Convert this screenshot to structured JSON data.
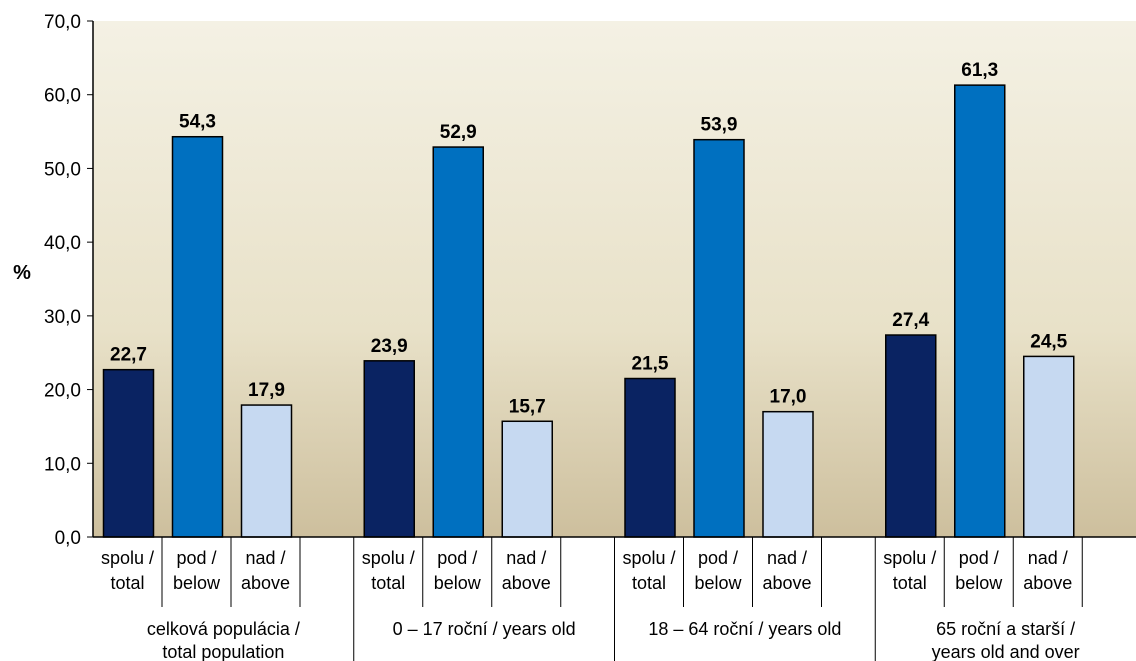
{
  "chart_data": {
    "type": "bar",
    "ylabel": "%",
    "ylim": [
      0,
      70
    ],
    "yticks": [
      "0,0",
      "10,0",
      "20,0",
      "30,0",
      "40,0",
      "50,0",
      "60,0",
      "70,0"
    ],
    "grid": false,
    "legend": "none",
    "groups": [
      {
        "label_lines": [
          "celková populácia /",
          "total population"
        ],
        "bars": [
          {
            "label_lines": [
              "spolu /",
              "total"
            ],
            "value": 22.7,
            "value_label": "22,7"
          },
          {
            "label_lines": [
              "pod /",
              "below"
            ],
            "value": 54.3,
            "value_label": "54,3"
          },
          {
            "label_lines": [
              "nad /",
              "above"
            ],
            "value": 17.9,
            "value_label": "17,9"
          }
        ]
      },
      {
        "label_lines": [
          "0 – 17 roční / years old"
        ],
        "bars": [
          {
            "label_lines": [
              "spolu /",
              "total"
            ],
            "value": 23.9,
            "value_label": "23,9"
          },
          {
            "label_lines": [
              "pod /",
              "below"
            ],
            "value": 52.9,
            "value_label": "52,9"
          },
          {
            "label_lines": [
              "nad /",
              "above"
            ],
            "value": 15.7,
            "value_label": "15,7"
          }
        ]
      },
      {
        "label_lines": [
          "18 – 64 roční / years old"
        ],
        "bars": [
          {
            "label_lines": [
              "spolu /",
              "total"
            ],
            "value": 21.5,
            "value_label": "21,5"
          },
          {
            "label_lines": [
              "pod /",
              "below"
            ],
            "value": 53.9,
            "value_label": "53,9"
          },
          {
            "label_lines": [
              "nad /",
              "above"
            ],
            "value": 17.0,
            "value_label": "17,0"
          }
        ]
      },
      {
        "label_lines": [
          "65 roční a starší /",
          "years old and over"
        ],
        "bars": [
          {
            "label_lines": [
              "spolu /",
              "total"
            ],
            "value": 27.4,
            "value_label": "27,4"
          },
          {
            "label_lines": [
              "pod /",
              "below"
            ],
            "value": 61.3,
            "value_label": "61,3"
          },
          {
            "label_lines": [
              "nad /",
              "above"
            ],
            "value": 24.5,
            "value_label": "24,5"
          }
        ]
      }
    ],
    "colors": {
      "spolu": "#0a2362",
      "pod": "#0070c0",
      "nad": "#c6d9f1",
      "background_top": "#f4f1e4",
      "background_bottom": "#cdbf9d"
    }
  }
}
